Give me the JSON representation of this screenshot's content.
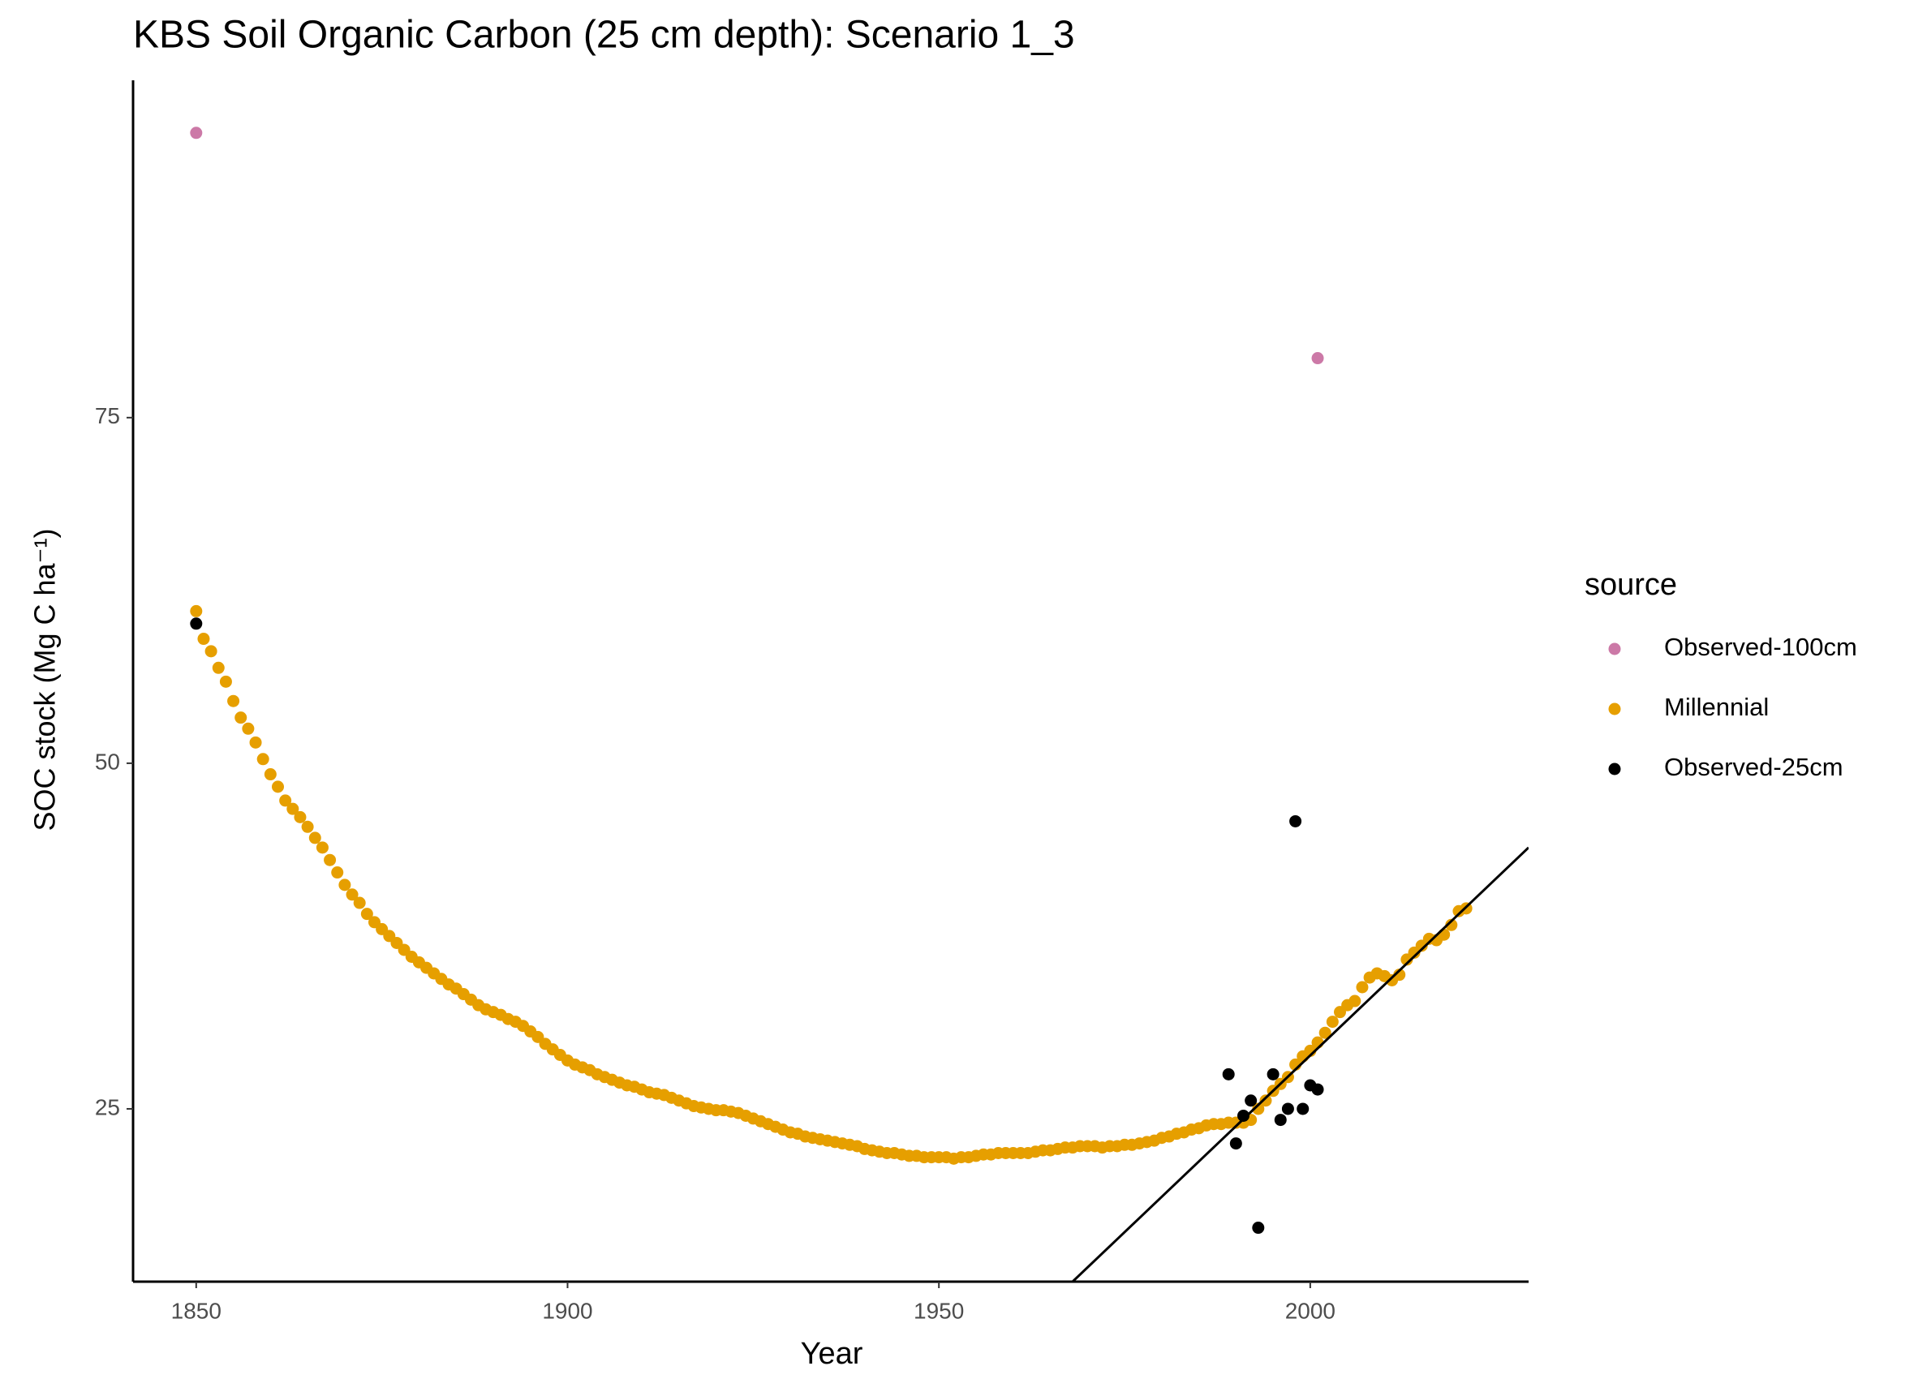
{
  "chart_data": {
    "type": "scatter",
    "title": "KBS Soil Organic Carbon (25 cm depth): Scenario  1_3",
    "xlabel": "Year",
    "ylabel": "SOC stock (Mg C ha⁻¹)",
    "legend_title": "source",
    "legend_position": "right",
    "xlim": [
      1841.5,
      2029.4
    ],
    "xticks": [
      1850,
      1900,
      1950,
      2000
    ],
    "ylim": [
      12.5,
      99.4
    ],
    "yticks": [
      25,
      50,
      75
    ],
    "series": [
      {
        "name": "Observed-100cm",
        "color": "#CC79A7",
        "x": [
          1850,
          2001
        ],
        "values": [
          95.6,
          79.3
        ]
      },
      {
        "name": "Millennial",
        "color": "#E69F00",
        "x": [
          1850,
          1851,
          1852,
          1853,
          1854,
          1855,
          1856,
          1857,
          1858,
          1859,
          1860,
          1861,
          1862,
          1863,
          1864,
          1865,
          1866,
          1867,
          1868,
          1869,
          1870,
          1871,
          1872,
          1873,
          1874,
          1875,
          1876,
          1877,
          1878,
          1879,
          1880,
          1881,
          1882,
          1883,
          1884,
          1885,
          1886,
          1887,
          1888,
          1889,
          1890,
          1891,
          1892,
          1893,
          1894,
          1895,
          1896,
          1897,
          1898,
          1899,
          1900,
          1901,
          1902,
          1903,
          1904,
          1905,
          1906,
          1907,
          1908,
          1909,
          1910,
          1911,
          1912,
          1913,
          1914,
          1915,
          1916,
          1917,
          1918,
          1919,
          1920,
          1921,
          1922,
          1923,
          1924,
          1925,
          1926,
          1927,
          1928,
          1929,
          1930,
          1931,
          1932,
          1933,
          1934,
          1935,
          1936,
          1937,
          1938,
          1939,
          1940,
          1941,
          1942,
          1943,
          1944,
          1945,
          1946,
          1947,
          1948,
          1949,
          1950,
          1951,
          1952,
          1953,
          1954,
          1955,
          1956,
          1957,
          1958,
          1959,
          1960,
          1961,
          1962,
          1963,
          1964,
          1965,
          1966,
          1967,
          1968,
          1969,
          1970,
          1971,
          1972,
          1973,
          1974,
          1975,
          1976,
          1977,
          1978,
          1979,
          1980,
          1981,
          1982,
          1983,
          1984,
          1985,
          1986,
          1987,
          1988,
          1989,
          1990,
          1991,
          1992,
          1993,
          1994,
          1995,
          1996,
          1997,
          1998,
          1999,
          2000,
          2001,
          2002,
          2003,
          2004,
          2005,
          2006,
          2007,
          2008,
          2009,
          2010,
          2011,
          2012,
          2013,
          2014,
          2015,
          2016,
          2017,
          2018,
          2019,
          2020,
          2021
        ],
        "values": [
          61.0,
          59.0,
          58.1,
          56.9,
          55.9,
          54.5,
          53.3,
          52.5,
          51.5,
          50.3,
          49.2,
          48.3,
          47.3,
          46.7,
          46.1,
          45.4,
          44.6,
          43.9,
          43.0,
          42.1,
          41.2,
          40.5,
          39.9,
          39.1,
          38.5,
          38.0,
          37.5,
          37.0,
          36.5,
          36.0,
          35.6,
          35.2,
          34.8,
          34.4,
          34.0,
          33.7,
          33.3,
          32.9,
          32.5,
          32.2,
          32.0,
          31.8,
          31.5,
          31.3,
          31.0,
          30.6,
          30.2,
          29.7,
          29.3,
          28.9,
          28.5,
          28.2,
          28.0,
          27.8,
          27.5,
          27.3,
          27.1,
          26.9,
          26.7,
          26.6,
          26.4,
          26.2,
          26.1,
          26.0,
          25.8,
          25.6,
          25.4,
          25.2,
          25.1,
          25.0,
          24.9,
          24.9,
          24.8,
          24.7,
          24.5,
          24.3,
          24.1,
          23.9,
          23.7,
          23.5,
          23.3,
          23.2,
          23.0,
          22.9,
          22.8,
          22.7,
          22.6,
          22.5,
          22.4,
          22.3,
          22.1,
          22.0,
          21.9,
          21.8,
          21.8,
          21.7,
          21.6,
          21.6,
          21.5,
          21.5,
          21.5,
          21.5,
          21.4,
          21.5,
          21.5,
          21.6,
          21.7,
          21.7,
          21.8,
          21.8,
          21.8,
          21.8,
          21.8,
          21.9,
          22.0,
          22.0,
          22.1,
          22.2,
          22.2,
          22.3,
          22.3,
          22.3,
          22.2,
          22.3,
          22.3,
          22.4,
          22.4,
          22.5,
          22.6,
          22.7,
          22.9,
          23.0,
          23.2,
          23.3,
          23.5,
          23.6,
          23.8,
          23.9,
          23.9,
          24.0,
          24.0,
          24.0,
          24.2,
          25.0,
          25.6,
          26.3,
          26.8,
          27.3,
          28.2,
          28.8,
          29.2,
          29.8,
          30.5,
          31.3,
          32.0,
          32.5,
          32.8,
          33.8,
          34.5,
          34.8,
          34.6,
          34.3,
          34.7,
          35.8,
          36.3,
          36.8,
          37.3,
          37.2,
          37.6,
          38.3,
          39.3,
          39.5
        ]
      },
      {
        "name": "Observed-25cm",
        "color": "#000000",
        "x": [
          1850,
          1989,
          1990,
          1991,
          1992,
          1993,
          1995,
          1996,
          1997,
          1998,
          1999,
          2000,
          2001
        ],
        "values": [
          60.1,
          27.5,
          22.5,
          24.5,
          25.6,
          16.4,
          27.5,
          24.2,
          25.0,
          45.8,
          25.0,
          26.7,
          26.4
        ]
      }
    ],
    "trend_line": {
      "color": "#000000",
      "x": [
        1968.0,
        2029.4
      ],
      "values": [
        12.5,
        43.9
      ]
    }
  }
}
